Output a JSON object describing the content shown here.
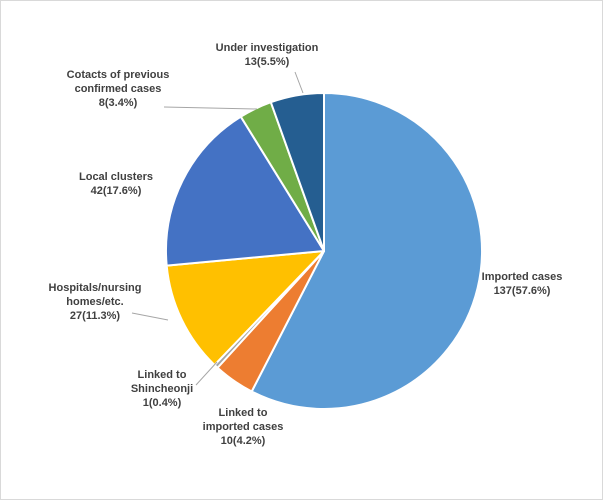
{
  "chart_data": {
    "type": "pie",
    "title": "",
    "slices": [
      {
        "label_lines": [
          "Imported cases"
        ],
        "value_text": "137(57.6%)",
        "value": 137,
        "percent": 57.6,
        "color": "#5b9bd5"
      },
      {
        "label_lines": [
          "Linked to",
          "imported cases"
        ],
        "value_text": "10(4.2%)",
        "value": 10,
        "percent": 4.2,
        "color": "#ed7d31"
      },
      {
        "label_lines": [
          "Linked to",
          "Shincheonji"
        ],
        "value_text": "1(0.4%)",
        "value": 1,
        "percent": 0.4,
        "color": "#a5a5a5"
      },
      {
        "label_lines": [
          "Hospitals/nursing",
          "homes/etc."
        ],
        "value_text": "27(11.3%)",
        "value": 27,
        "percent": 11.3,
        "color": "#ffc000"
      },
      {
        "label_lines": [
          "Local clusters"
        ],
        "value_text": "42(17.6%)",
        "value": 42,
        "percent": 17.6,
        "color": "#4472c4"
      },
      {
        "label_lines": [
          "Cotacts of previous",
          "confirmed cases"
        ],
        "value_text": "8(3.4%)",
        "value": 8,
        "percent": 3.4,
        "color": "#70ad47"
      },
      {
        "label_lines": [
          "Under investigation"
        ],
        "value_text": "13(5.5%)",
        "value": 13,
        "percent": 5.5,
        "color": "#255e91"
      }
    ],
    "legend": "none",
    "start_angle": "12 o'clock, clockwise"
  }
}
